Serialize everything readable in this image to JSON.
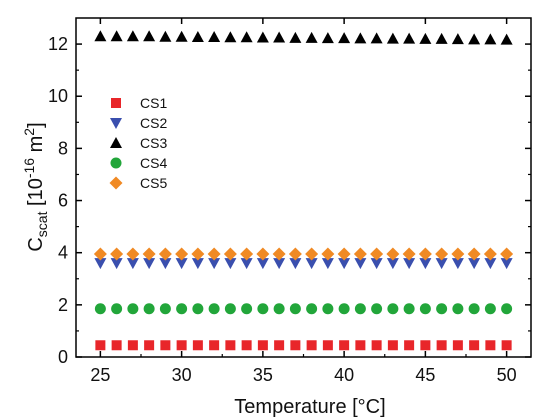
{
  "chart_data": {
    "type": "scatter",
    "xlabel": "Temperature [°C]",
    "ylabel": {
      "base": "C",
      "subscript": "scat",
      "bracket_open": " [10",
      "exponent": "-16",
      "unit": " m",
      "unit_exponent": "2",
      "bracket_close": "]"
    },
    "xlim": [
      23.5,
      51.5
    ],
    "ylim": [
      0,
      13
    ],
    "xticks": [
      25,
      30,
      35,
      40,
      45,
      50
    ],
    "yticks": [
      0,
      2,
      4,
      6,
      8,
      10,
      12
    ],
    "grid": false,
    "legend_position": "left-middle",
    "x": [
      25,
      26,
      27,
      28,
      29,
      30,
      31,
      32,
      33,
      34,
      35,
      36,
      37,
      38,
      39,
      40,
      41,
      42,
      43,
      44,
      45,
      46,
      47,
      48,
      49,
      50
    ],
    "series": [
      {
        "name": "CS1",
        "marker": "square",
        "color": "#e8262a",
        "values": [
          0.45,
          0.45,
          0.45,
          0.45,
          0.45,
          0.45,
          0.45,
          0.45,
          0.45,
          0.45,
          0.45,
          0.45,
          0.45,
          0.45,
          0.45,
          0.45,
          0.45,
          0.45,
          0.45,
          0.45,
          0.45,
          0.45,
          0.45,
          0.45,
          0.45,
          0.45
        ]
      },
      {
        "name": "CS2",
        "marker": "triangle-down",
        "color": "#3a4fae",
        "values": [
          3.6,
          3.6,
          3.6,
          3.6,
          3.6,
          3.6,
          3.6,
          3.6,
          3.6,
          3.6,
          3.6,
          3.6,
          3.6,
          3.6,
          3.6,
          3.6,
          3.6,
          3.6,
          3.6,
          3.6,
          3.6,
          3.6,
          3.6,
          3.6,
          3.6,
          3.6
        ]
      },
      {
        "name": "CS3",
        "marker": "triangle-up",
        "color": "#000000",
        "values": [
          12.3,
          12.3,
          12.3,
          12.3,
          12.28,
          12.28,
          12.27,
          12.27,
          12.26,
          12.26,
          12.25,
          12.25,
          12.24,
          12.24,
          12.23,
          12.23,
          12.22,
          12.22,
          12.21,
          12.21,
          12.2,
          12.2,
          12.19,
          12.18,
          12.18,
          12.17
        ]
      },
      {
        "name": "CS4",
        "marker": "circle",
        "color": "#22a63a",
        "values": [
          1.85,
          1.85,
          1.85,
          1.85,
          1.85,
          1.85,
          1.85,
          1.85,
          1.85,
          1.85,
          1.85,
          1.85,
          1.85,
          1.85,
          1.85,
          1.85,
          1.85,
          1.85,
          1.85,
          1.85,
          1.85,
          1.85,
          1.85,
          1.85,
          1.85,
          1.85
        ]
      },
      {
        "name": "CS5",
        "marker": "diamond",
        "color": "#f08a24",
        "values": [
          3.95,
          3.95,
          3.95,
          3.95,
          3.95,
          3.95,
          3.95,
          3.95,
          3.95,
          3.95,
          3.95,
          3.95,
          3.95,
          3.95,
          3.95,
          3.95,
          3.95,
          3.95,
          3.95,
          3.95,
          3.95,
          3.95,
          3.95,
          3.95,
          3.95,
          3.95
        ]
      }
    ]
  }
}
